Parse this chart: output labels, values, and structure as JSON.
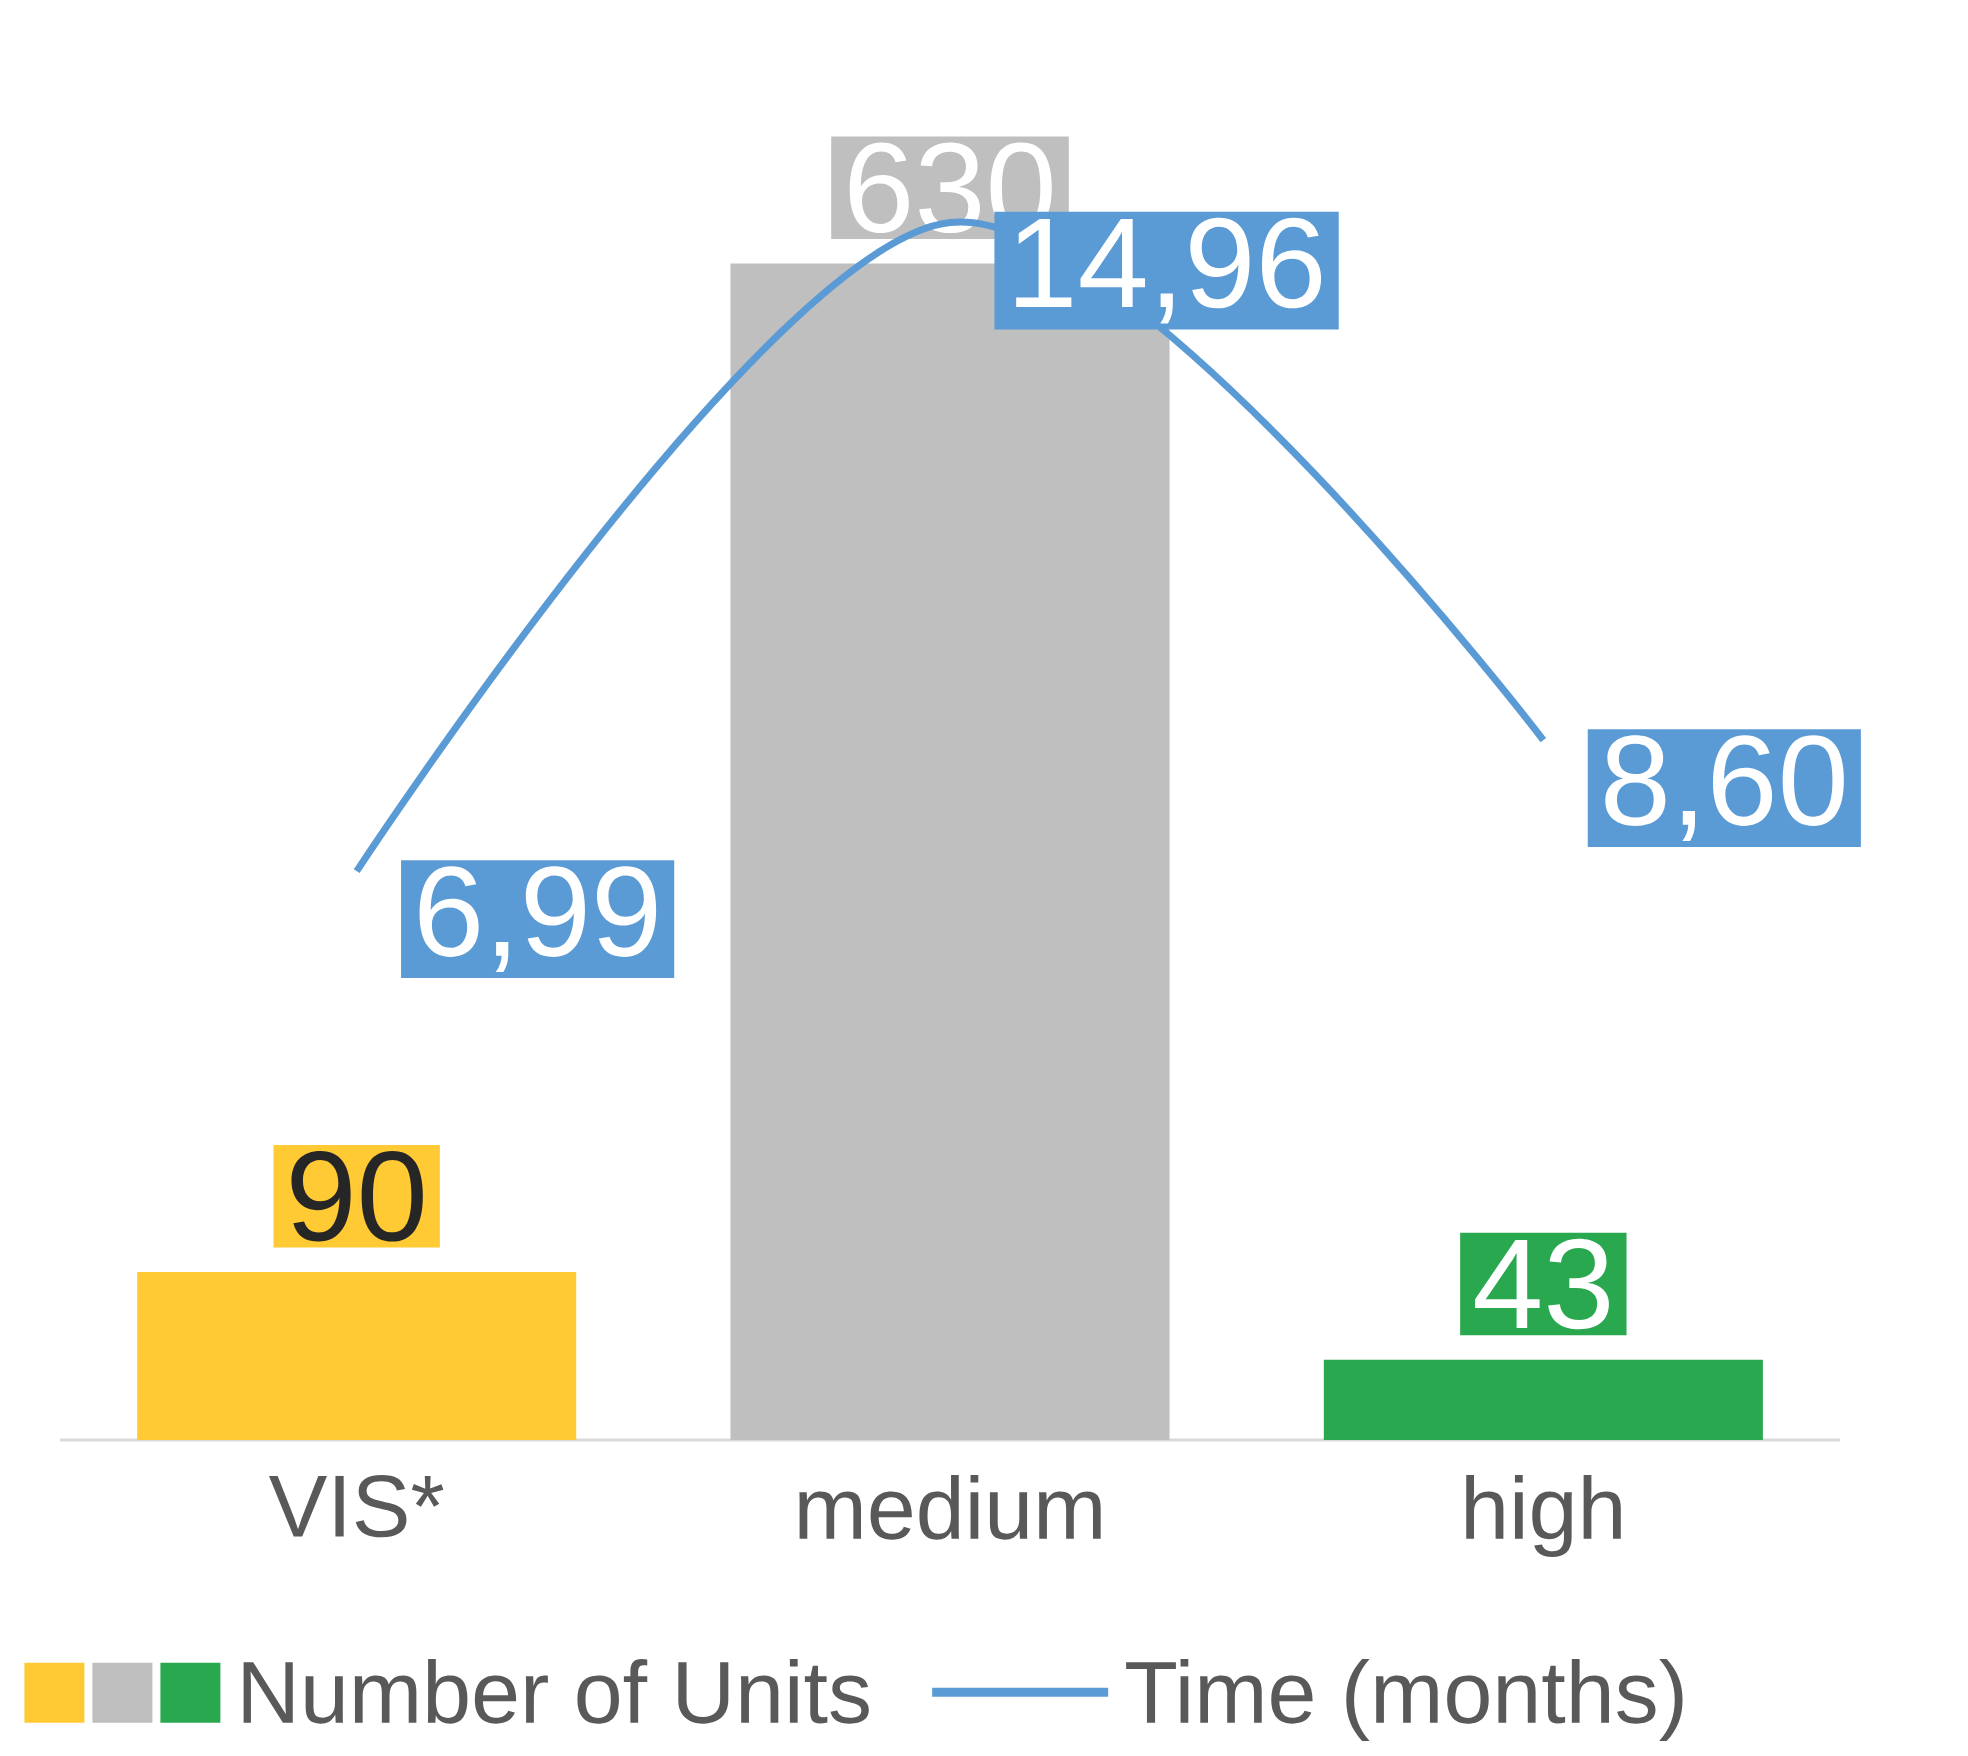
{
  "chart_data": {
    "type": "bar",
    "categories": [
      "VIS*",
      "medium",
      "high"
    ],
    "series": [
      {
        "name": "Number of Units",
        "colors": [
          "#ffca33",
          "#bfbfbf",
          "#2aa84f"
        ],
        "values": [
          90,
          630,
          43
        ],
        "value_labels": [
          "90",
          "630",
          "43"
        ]
      },
      {
        "name": "Time (months)",
        "type": "line",
        "axis": "y2",
        "color": "#5b9bd5",
        "values": [
          6.99,
          14.96,
          8.6
        ],
        "value_labels": [
          "6,99",
          "14,96",
          "8,60"
        ]
      }
    ],
    "legend": "bottom"
  }
}
